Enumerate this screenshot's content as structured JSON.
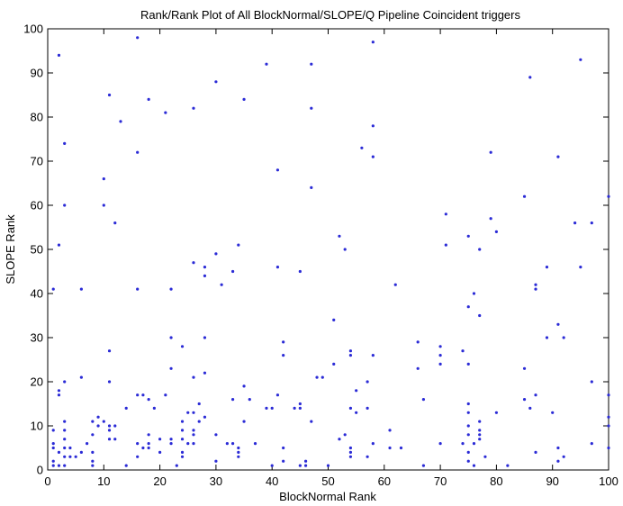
{
  "chart_data": {
    "type": "scatter",
    "title": "Rank/Rank Plot of All BlockNormal/SLOPE/Q Pipeline Coincident triggers",
    "xlabel": "BlockNormal Rank",
    "ylabel": "SLOPE Rank",
    "xlim": [
      0,
      100
    ],
    "ylim": [
      0,
      100
    ],
    "xticks": [
      0,
      10,
      20,
      30,
      40,
      50,
      60,
      70,
      80,
      90,
      100
    ],
    "yticks": [
      0,
      10,
      20,
      30,
      40,
      50,
      60,
      70,
      80,
      90,
      100
    ],
    "grid": false,
    "legend": "none",
    "marker_color": "#2b2bd6",
    "points": [
      [
        1,
        41
      ],
      [
        1,
        9
      ],
      [
        1,
        6
      ],
      [
        1,
        5
      ],
      [
        1,
        2
      ],
      [
        1,
        1
      ],
      [
        2,
        94
      ],
      [
        2,
        51
      ],
      [
        2,
        18
      ],
      [
        2,
        17
      ],
      [
        2,
        4
      ],
      [
        2,
        1
      ],
      [
        3,
        74
      ],
      [
        3,
        60
      ],
      [
        3,
        20
      ],
      [
        3,
        11
      ],
      [
        3,
        9
      ],
      [
        3,
        7
      ],
      [
        3,
        5
      ],
      [
        3,
        3
      ],
      [
        3,
        1
      ],
      [
        4,
        5
      ],
      [
        4,
        3
      ],
      [
        5,
        3
      ],
      [
        6,
        41
      ],
      [
        6,
        21
      ],
      [
        6,
        4
      ],
      [
        7,
        6
      ],
      [
        8,
        11
      ],
      [
        8,
        8
      ],
      [
        8,
        4
      ],
      [
        8,
        2
      ],
      [
        8,
        1
      ],
      [
        9,
        12
      ],
      [
        9,
        10
      ],
      [
        10,
        66
      ],
      [
        10,
        60
      ],
      [
        10,
        11
      ],
      [
        11,
        85
      ],
      [
        11,
        27
      ],
      [
        11,
        20
      ],
      [
        11,
        10
      ],
      [
        11,
        9
      ],
      [
        11,
        7
      ],
      [
        12,
        56
      ],
      [
        12,
        10
      ],
      [
        12,
        7
      ],
      [
        13,
        79
      ],
      [
        14,
        14
      ],
      [
        14,
        1
      ],
      [
        16,
        98
      ],
      [
        16,
        72
      ],
      [
        16,
        41
      ],
      [
        16,
        17
      ],
      [
        16,
        6
      ],
      [
        16,
        3
      ],
      [
        17,
        17
      ],
      [
        17,
        5
      ],
      [
        18,
        84
      ],
      [
        18,
        16
      ],
      [
        18,
        8
      ],
      [
        18,
        6
      ],
      [
        18,
        5
      ],
      [
        19,
        14
      ],
      [
        20,
        7
      ],
      [
        20,
        4
      ],
      [
        21,
        81
      ],
      [
        21,
        17
      ],
      [
        22,
        41
      ],
      [
        22,
        30
      ],
      [
        22,
        23
      ],
      [
        22,
        7
      ],
      [
        22,
        6
      ],
      [
        23,
        1
      ],
      [
        24,
        28
      ],
      [
        24,
        11
      ],
      [
        24,
        9
      ],
      [
        24,
        7
      ],
      [
        24,
        4
      ],
      [
        24,
        3
      ],
      [
        25,
        13
      ],
      [
        25,
        6
      ],
      [
        26,
        82
      ],
      [
        26,
        47
      ],
      [
        26,
        21
      ],
      [
        26,
        13
      ],
      [
        26,
        9
      ],
      [
        26,
        8
      ],
      [
        26,
        6
      ],
      [
        27,
        15
      ],
      [
        27,
        11
      ],
      [
        28,
        46
      ],
      [
        28,
        44
      ],
      [
        28,
        30
      ],
      [
        28,
        22
      ],
      [
        28,
        12
      ],
      [
        30,
        88
      ],
      [
        30,
        49
      ],
      [
        30,
        8
      ],
      [
        30,
        2
      ],
      [
        31,
        42
      ],
      [
        32,
        6
      ],
      [
        33,
        45
      ],
      [
        33,
        16
      ],
      [
        33,
        6
      ],
      [
        34,
        51
      ],
      [
        34,
        5
      ],
      [
        34,
        4
      ],
      [
        34,
        3
      ],
      [
        35,
        84
      ],
      [
        35,
        19
      ],
      [
        35,
        11
      ],
      [
        36,
        16
      ],
      [
        37,
        6
      ],
      [
        39,
        92
      ],
      [
        39,
        14
      ],
      [
        40,
        14
      ],
      [
        40,
        1
      ],
      [
        41,
        68
      ],
      [
        41,
        46
      ],
      [
        41,
        17
      ],
      [
        42,
        29
      ],
      [
        42,
        26
      ],
      [
        42,
        5
      ],
      [
        42,
        2
      ],
      [
        44,
        14
      ],
      [
        45,
        45
      ],
      [
        45,
        15
      ],
      [
        45,
        14
      ],
      [
        45,
        1
      ],
      [
        46,
        2
      ],
      [
        46,
        1
      ],
      [
        47,
        92
      ],
      [
        47,
        82
      ],
      [
        47,
        64
      ],
      [
        47,
        11
      ],
      [
        48,
        21
      ],
      [
        49,
        21
      ],
      [
        50,
        1
      ],
      [
        51,
        34
      ],
      [
        51,
        24
      ],
      [
        52,
        53
      ],
      [
        52,
        7
      ],
      [
        53,
        50
      ],
      [
        53,
        8
      ],
      [
        54,
        27
      ],
      [
        54,
        26
      ],
      [
        54,
        14
      ],
      [
        54,
        5
      ],
      [
        54,
        4
      ],
      [
        54,
        3
      ],
      [
        55,
        18
      ],
      [
        55,
        13
      ],
      [
        56,
        73
      ],
      [
        57,
        20
      ],
      [
        57,
        14
      ],
      [
        57,
        3
      ],
      [
        58,
        97
      ],
      [
        58,
        78
      ],
      [
        58,
        71
      ],
      [
        58,
        26
      ],
      [
        58,
        6
      ],
      [
        61,
        9
      ],
      [
        61,
        5
      ],
      [
        62,
        42
      ],
      [
        63,
        5
      ],
      [
        66,
        29
      ],
      [
        66,
        23
      ],
      [
        67,
        16
      ],
      [
        67,
        1
      ],
      [
        70,
        28
      ],
      [
        70,
        26
      ],
      [
        70,
        24
      ],
      [
        70,
        6
      ],
      [
        71,
        58
      ],
      [
        71,
        51
      ],
      [
        74,
        27
      ],
      [
        74,
        6
      ],
      [
        75,
        53
      ],
      [
        75,
        37
      ],
      [
        75,
        24
      ],
      [
        75,
        15
      ],
      [
        75,
        13
      ],
      [
        75,
        10
      ],
      [
        75,
        8
      ],
      [
        75,
        4
      ],
      [
        75,
        2
      ],
      [
        76,
        40
      ],
      [
        76,
        6
      ],
      [
        76,
        1
      ],
      [
        77,
        50
      ],
      [
        77,
        35
      ],
      [
        77,
        11
      ],
      [
        77,
        9
      ],
      [
        77,
        8
      ],
      [
        77,
        7
      ],
      [
        78,
        3
      ],
      [
        79,
        72
      ],
      [
        79,
        57
      ],
      [
        80,
        54
      ],
      [
        80,
        13
      ],
      [
        82,
        1
      ],
      [
        85,
        62
      ],
      [
        85,
        23
      ],
      [
        85,
        16
      ],
      [
        86,
        89
      ],
      [
        86,
        14
      ],
      [
        87,
        42
      ],
      [
        87,
        41
      ],
      [
        87,
        17
      ],
      [
        87,
        4
      ],
      [
        89,
        46
      ],
      [
        89,
        30
      ],
      [
        90,
        13
      ],
      [
        91,
        71
      ],
      [
        91,
        33
      ],
      [
        91,
        5
      ],
      [
        91,
        2
      ],
      [
        92,
        30
      ],
      [
        92,
        3
      ],
      [
        94,
        56
      ],
      [
        95,
        93
      ],
      [
        95,
        46
      ],
      [
        97,
        56
      ],
      [
        97,
        20
      ],
      [
        97,
        6
      ],
      [
        100,
        62
      ],
      [
        100,
        17
      ],
      [
        100,
        12
      ],
      [
        100,
        10
      ],
      [
        100,
        5
      ]
    ]
  }
}
